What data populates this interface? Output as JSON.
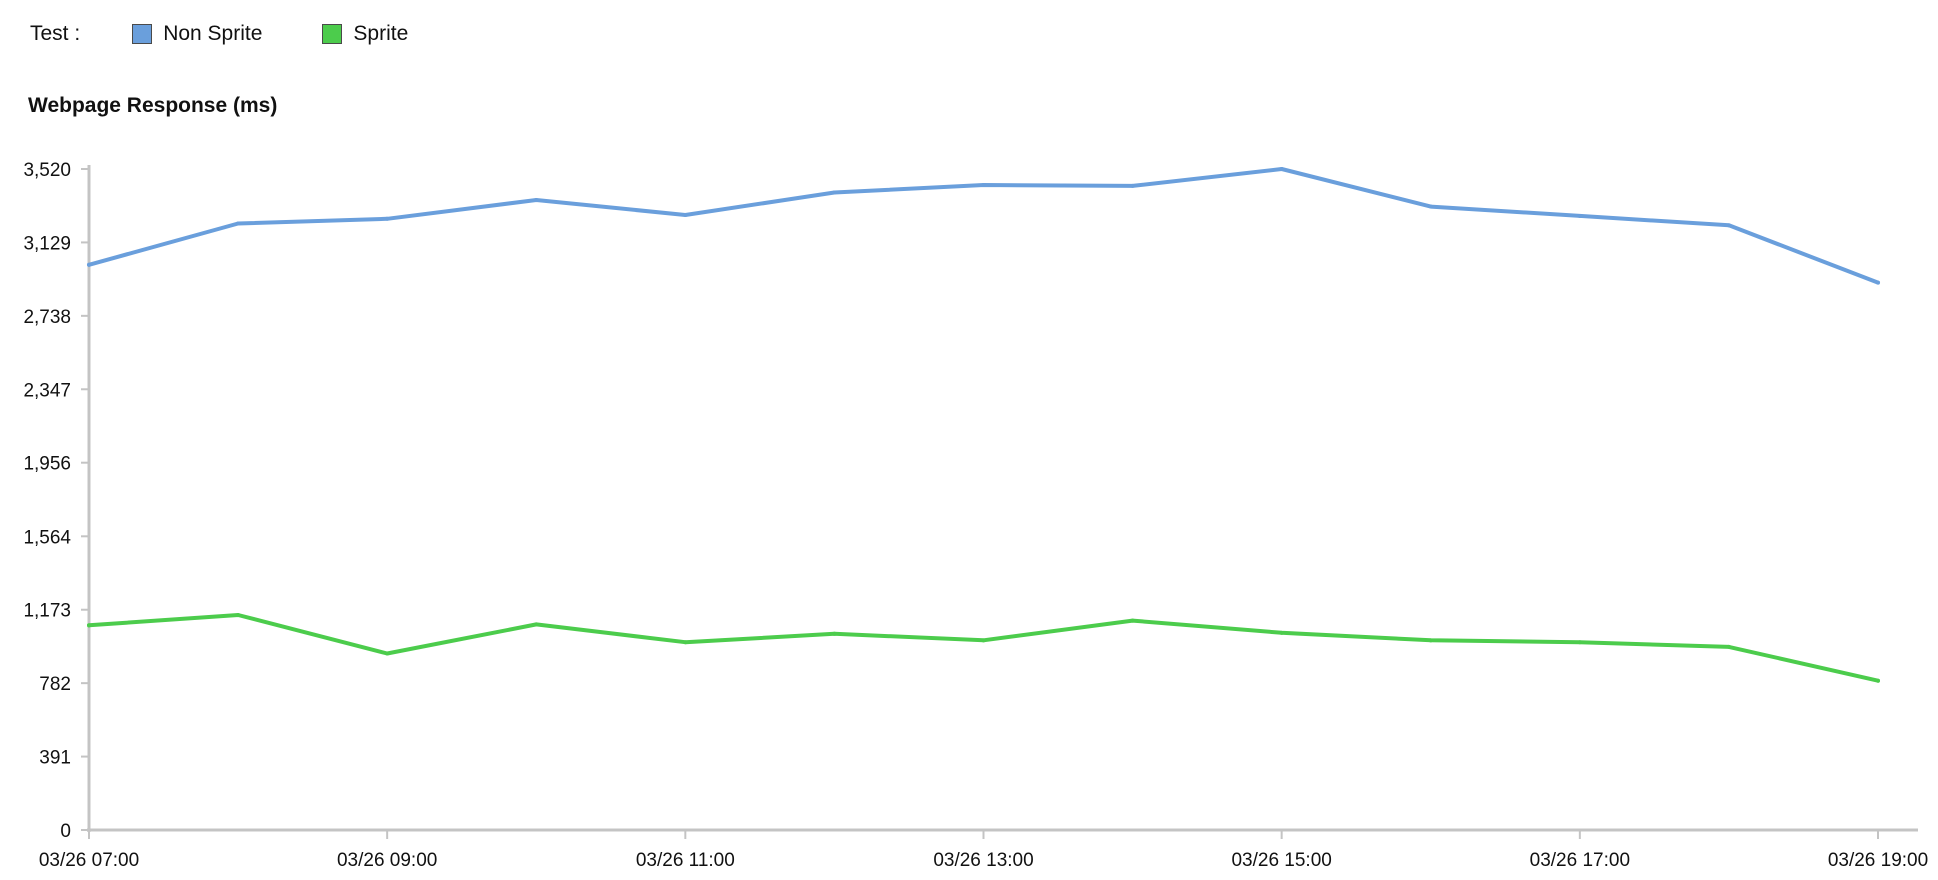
{
  "legend": {
    "title": "Test :",
    "items": [
      {
        "label": "Non Sprite",
        "color": "#6a9fdc"
      },
      {
        "label": "Sprite",
        "color": "#4ccc4c"
      }
    ]
  },
  "chart_data": {
    "type": "line",
    "title": "Webpage Response (ms)",
    "xlabel": "",
    "ylabel": "",
    "x": [
      "03/26 07:00",
      "03/26 08:00",
      "03/26 09:00",
      "03/26 10:00",
      "03/26 11:00",
      "03/26 12:00",
      "03/26 13:00",
      "03/26 14:00",
      "03/26 15:00",
      "03/26 16:00",
      "03/26 17:00",
      "03/26 18:00",
      "03/26 19:00"
    ],
    "x_tick_labels": [
      "03/26 07:00",
      "03/26 09:00",
      "03/26 11:00",
      "03/26 13:00",
      "03/26 15:00",
      "03/26 17:00",
      "03/26 19:00"
    ],
    "y_ticks": [
      0,
      391,
      782,
      1173,
      1564,
      1956,
      2347,
      2738,
      3129,
      3520
    ],
    "y_tick_labels": [
      "0",
      "391",
      "782",
      "1,173",
      "1,564",
      "1,956",
      "2,347",
      "2,738",
      "3,129",
      "3,520"
    ],
    "ylim": [
      0,
      3520
    ],
    "grid": false,
    "legend_position": "top-left",
    "series": [
      {
        "name": "Non Sprite",
        "color": "#6a9fdc",
        "values": [
          3010,
          3230,
          3255,
          3355,
          3275,
          3395,
          3435,
          3430,
          3520,
          3320,
          3270,
          3220,
          2915
        ]
      },
      {
        "name": "Sprite",
        "color": "#4ccc4c",
        "values": [
          1090,
          1145,
          940,
          1095,
          1000,
          1045,
          1010,
          1115,
          1050,
          1010,
          1000,
          975,
          795
        ]
      }
    ]
  }
}
